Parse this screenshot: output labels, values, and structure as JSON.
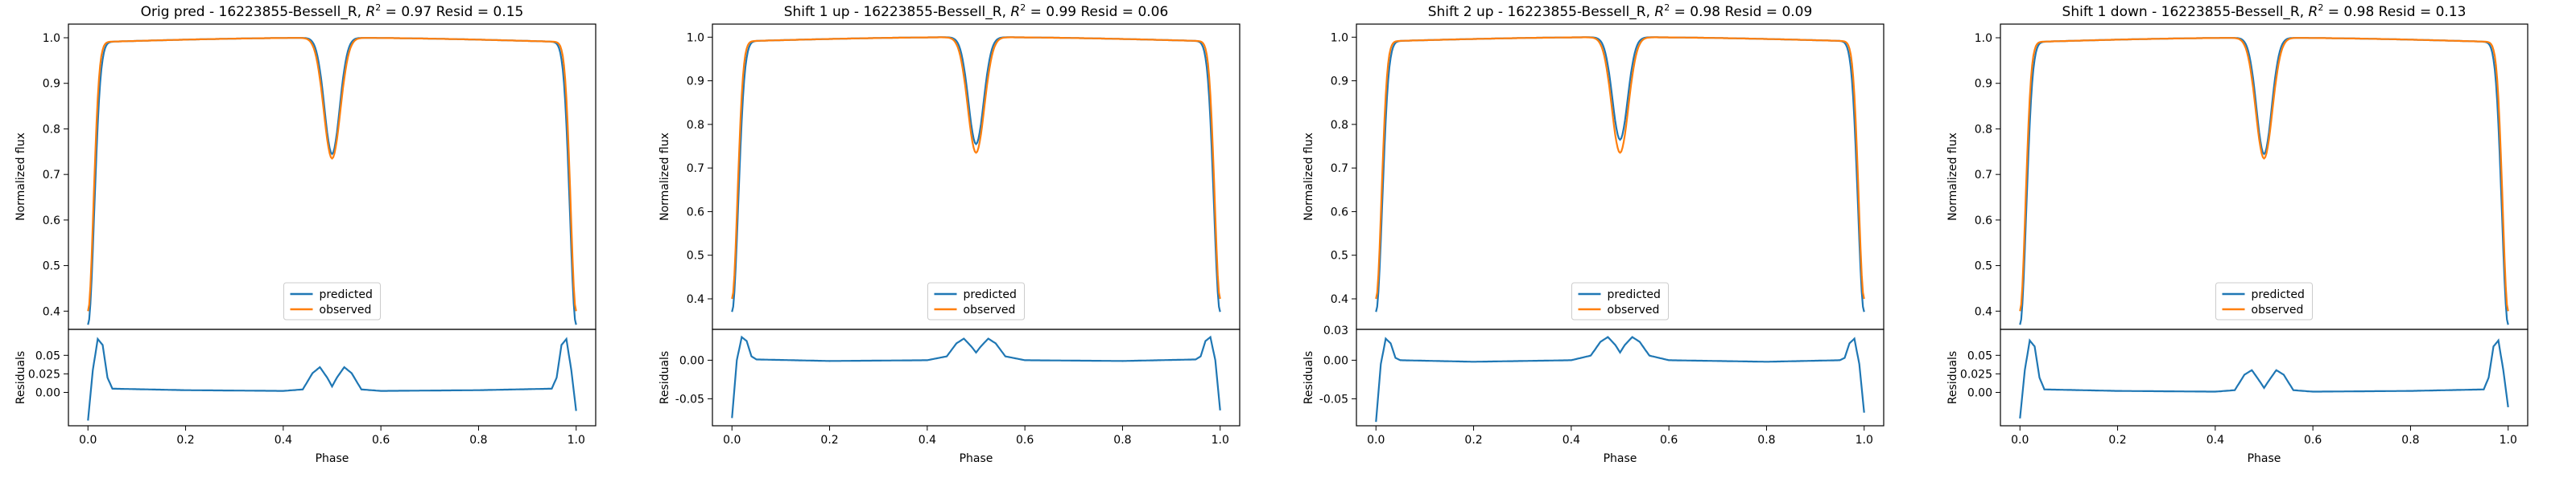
{
  "colors": {
    "predicted": "#1f77b4",
    "observed": "#ff7f0e",
    "axes": "#000000",
    "background": "#ffffff"
  },
  "chart_data": [
    {
      "type": "line",
      "title": "Orig pred - 16223855-Bessell_R, $R^2 = 0.97$ Resid = 0.15",
      "title_parts": [
        "Orig pred - 16223855-Bessell_R, ",
        "R",
        "2",
        " = 0.97 Resid = 0.15"
      ],
      "eclipse_depth": {
        "predicted": 0.74,
        "observed": 0.73
      },
      "flux_panel": {
        "ylabel": "Normalized flux",
        "xlim": [
          -0.04,
          1.04
        ],
        "ylim": [
          0.36,
          1.03
        ],
        "yticks": [
          0.4,
          0.5,
          0.6,
          0.7,
          0.8,
          0.9,
          1.0
        ],
        "ytick_labels": [
          "0.4",
          "0.5",
          "0.6",
          "0.7",
          "0.8",
          "0.9",
          "1.0"
        ]
      },
      "residual_panel": {
        "ylabel": "Residuals",
        "xlabel": "Phase",
        "ylim": [
          -0.045,
          0.085
        ],
        "yticks": [
          0.0,
          0.025,
          0.05
        ],
        "ytick_labels": [
          "0.00",
          "0.025",
          "0.05"
        ]
      },
      "xticks": [
        0.0,
        0.2,
        0.4,
        0.6,
        0.8,
        1.0
      ],
      "xtick_labels": [
        "0.0",
        "0.2",
        "0.4",
        "0.6",
        "0.8",
        "1.0"
      ],
      "legend": {
        "entries": [
          "predicted",
          "observed"
        ],
        "placement": "lower-center"
      },
      "residuals": {
        "phase": [
          0.0,
          0.01,
          0.02,
          0.03,
          0.04,
          0.05,
          0.2,
          0.4,
          0.44,
          0.46,
          0.475,
          0.49,
          0.5,
          0.51,
          0.525,
          0.54,
          0.56,
          0.6,
          0.8,
          0.95,
          0.96,
          0.97,
          0.98,
          0.99,
          1.0
        ],
        "values": [
          -0.038,
          0.03,
          0.072,
          0.064,
          0.02,
          0.005,
          0.003,
          0.002,
          0.004,
          0.026,
          0.034,
          0.02,
          0.008,
          0.02,
          0.034,
          0.026,
          0.004,
          0.002,
          0.003,
          0.005,
          0.02,
          0.064,
          0.072,
          0.03,
          -0.025
        ]
      }
    },
    {
      "type": "line",
      "title": "Shift 1 up - 16223855-Bessell_R, $R^2 = 0.99$ Resid = 0.06",
      "title_parts": [
        "Shift 1 up - 16223855-Bessell_R, ",
        "R",
        "2",
        " = 0.99 Resid = 0.06"
      ],
      "eclipse_depth": {
        "predicted": 0.75,
        "observed": 0.73
      },
      "flux_panel": {
        "ylabel": "Normalized flux",
        "xlim": [
          -0.04,
          1.04
        ],
        "ylim": [
          0.33,
          1.03
        ],
        "yticks": [
          0.4,
          0.5,
          0.6,
          0.7,
          0.8,
          0.9,
          1.0
        ],
        "ytick_labels": [
          "0.4",
          "0.5",
          "0.6",
          "0.7",
          "0.8",
          "0.9",
          "1.0"
        ]
      },
      "residual_panel": {
        "ylabel": "Residuals",
        "xlabel": "Phase",
        "ylim": [
          -0.085,
          0.04
        ],
        "yticks": [
          -0.05,
          0.0
        ],
        "ytick_labels": [
          "-0.05",
          "0.00"
        ]
      },
      "xticks": [
        0.0,
        0.2,
        0.4,
        0.6,
        0.8,
        1.0
      ],
      "xtick_labels": [
        "0.0",
        "0.2",
        "0.4",
        "0.6",
        "0.8",
        "1.0"
      ],
      "legend": {
        "entries": [
          "predicted",
          "observed"
        ],
        "placement": "lower-center"
      },
      "residuals": {
        "phase": [
          0.0,
          0.01,
          0.02,
          0.03,
          0.04,
          0.05,
          0.2,
          0.4,
          0.44,
          0.46,
          0.475,
          0.49,
          0.5,
          0.51,
          0.525,
          0.54,
          0.56,
          0.6,
          0.8,
          0.95,
          0.96,
          0.97,
          0.98,
          0.99,
          1.0
        ],
        "values": [
          -0.075,
          0.0,
          0.03,
          0.025,
          0.005,
          0.001,
          -0.001,
          0.0,
          0.005,
          0.022,
          0.028,
          0.018,
          0.01,
          0.018,
          0.028,
          0.022,
          0.005,
          0.0,
          -0.001,
          0.001,
          0.005,
          0.025,
          0.03,
          0.0,
          -0.065
        ]
      }
    },
    {
      "type": "line",
      "title": "Shift 2 up - 16223855-Bessell_R, $R^2 = 0.98$ Resid = 0.09",
      "title_parts": [
        "Shift 2 up - 16223855-Bessell_R, ",
        "R",
        "2",
        " = 0.98 Resid = 0.09"
      ],
      "eclipse_depth": {
        "predicted": 0.76,
        "observed": 0.73
      },
      "flux_panel": {
        "ylabel": "Normalized flux",
        "xlim": [
          -0.04,
          1.04
        ],
        "ylim": [
          0.33,
          1.03
        ],
        "yticks": [
          0.4,
          0.5,
          0.6,
          0.7,
          0.8,
          0.9,
          1.0
        ],
        "ytick_labels": [
          "0.4",
          "0.5",
          "0.6",
          "0.7",
          "0.8",
          "0.9",
          "1.0"
        ]
      },
      "residual_panel": {
        "ylabel": "Residuals",
        "xlabel": "Phase",
        "ylim": [
          -0.085,
          0.04
        ],
        "yticks": [
          -0.05,
          0.0
        ],
        "ytick_labels": [
          "-0.05",
          "0.00"
        ],
        "corner_label": "0.03"
      },
      "xticks": [
        0.0,
        0.2,
        0.4,
        0.6,
        0.8,
        1.0
      ],
      "xtick_labels": [
        "0.0",
        "0.2",
        "0.4",
        "0.6",
        "0.8",
        "1.0"
      ],
      "legend": {
        "entries": [
          "predicted",
          "observed"
        ],
        "placement": "lower-center"
      },
      "residuals": {
        "phase": [
          0.0,
          0.01,
          0.02,
          0.03,
          0.04,
          0.05,
          0.2,
          0.4,
          0.44,
          0.46,
          0.475,
          0.49,
          0.5,
          0.51,
          0.525,
          0.54,
          0.56,
          0.6,
          0.8,
          0.95,
          0.96,
          0.97,
          0.98,
          0.99,
          1.0
        ],
        "values": [
          -0.08,
          -0.005,
          0.028,
          0.022,
          0.003,
          0.0,
          -0.002,
          0.0,
          0.006,
          0.024,
          0.03,
          0.02,
          0.01,
          0.02,
          0.03,
          0.024,
          0.006,
          0.0,
          -0.002,
          0.0,
          0.003,
          0.022,
          0.028,
          -0.005,
          -0.068
        ]
      }
    },
    {
      "type": "line",
      "title": "Shift 1 down - 16223855-Bessell_R, $R^2 = 0.98$ Resid = 0.13",
      "title_parts": [
        "Shift 1 down - 16223855-Bessell_R, ",
        "R",
        "2",
        " = 0.98 Resid = 0.13"
      ],
      "eclipse_depth": {
        "predicted": 0.74,
        "observed": 0.73
      },
      "flux_panel": {
        "ylabel": "Normalized flux",
        "xlim": [
          -0.04,
          1.04
        ],
        "ylim": [
          0.36,
          1.03
        ],
        "yticks": [
          0.4,
          0.5,
          0.6,
          0.7,
          0.8,
          0.9,
          1.0
        ],
        "ytick_labels": [
          "0.4",
          "0.5",
          "0.6",
          "0.7",
          "0.8",
          "0.9",
          "1.0"
        ]
      },
      "residual_panel": {
        "ylabel": "Residuals",
        "xlabel": "Phase",
        "ylim": [
          -0.045,
          0.085
        ],
        "yticks": [
          0.0,
          0.025,
          0.05
        ],
        "ytick_labels": [
          "0.00",
          "0.025",
          "0.05"
        ]
      },
      "xticks": [
        0.0,
        0.2,
        0.4,
        0.6,
        0.8,
        1.0
      ],
      "xtick_labels": [
        "0.0",
        "0.2",
        "0.4",
        "0.6",
        "0.8",
        "1.0"
      ],
      "legend": {
        "entries": [
          "predicted",
          "observed"
        ],
        "placement": "lower-center"
      },
      "residuals": {
        "phase": [
          0.0,
          0.01,
          0.02,
          0.03,
          0.04,
          0.05,
          0.2,
          0.4,
          0.44,
          0.46,
          0.475,
          0.49,
          0.5,
          0.51,
          0.525,
          0.54,
          0.56,
          0.6,
          0.8,
          0.95,
          0.96,
          0.97,
          0.98,
          0.99,
          1.0
        ],
        "values": [
          -0.035,
          0.03,
          0.07,
          0.062,
          0.02,
          0.004,
          0.002,
          0.001,
          0.003,
          0.024,
          0.03,
          0.016,
          0.006,
          0.016,
          0.03,
          0.024,
          0.003,
          0.001,
          0.002,
          0.004,
          0.02,
          0.062,
          0.07,
          0.03,
          -0.02
        ]
      }
    }
  ]
}
